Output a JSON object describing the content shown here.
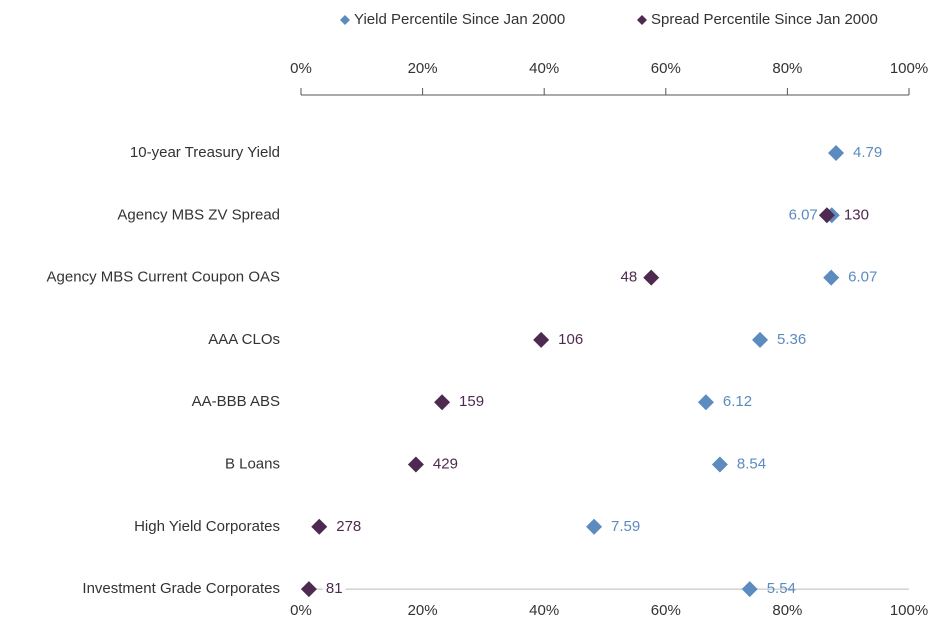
{
  "chart_data": {
    "type": "dot",
    "categories": [
      "10-year Treasury Yield",
      "Agency MBS ZV Spread",
      "Agency MBS Current Coupon OAS",
      "AAA CLOs",
      "AA-BBB ABS",
      "B Loans",
      "High Yield Corporates",
      "Investment Grade Corporates"
    ],
    "series": [
      {
        "name": "Yield Percentile Since Jan 2000",
        "color": "#5b8bbf",
        "values": [
          88.0,
          87.3,
          87.2,
          75.5,
          66.6,
          68.9,
          48.2,
          73.8
        ],
        "annotations": [
          4.79,
          6.07,
          6.07,
          5.36,
          6.12,
          8.54,
          7.59,
          5.54
        ]
      },
      {
        "name": "Spread Percentile Since Jan 2000",
        "color": "#4f2a50",
        "values": [
          null,
          86.5,
          57.6,
          39.5,
          23.2,
          18.9,
          3.0,
          1.3
        ],
        "annotations": [
          null,
          130,
          48,
          106,
          159,
          429,
          278,
          81
        ]
      }
    ],
    "xlim": [
      0,
      100
    ],
    "xticks": [
      {
        "value": 0,
        "label": "0%"
      },
      {
        "value": 20,
        "label": "20%"
      },
      {
        "value": 40,
        "label": "40%"
      },
      {
        "value": 60,
        "label": "60%"
      },
      {
        "value": 80,
        "label": "80%"
      },
      {
        "value": 100,
        "label": "100%"
      }
    ]
  }
}
